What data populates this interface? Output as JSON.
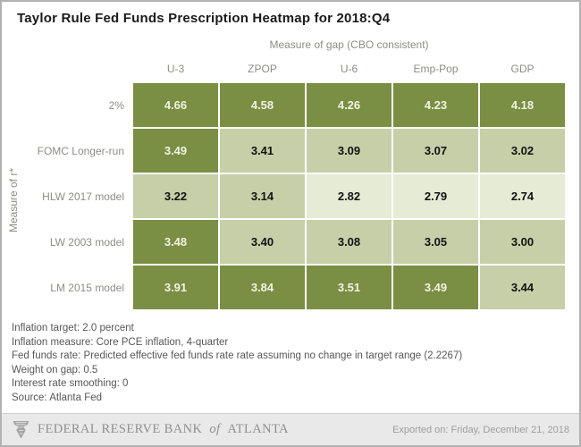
{
  "title": "Taylor Rule Fed Funds Prescription Heatmap for 2018:Q4",
  "chart_data": {
    "type": "heatmap",
    "x_axis_title": "Measure of gap (CBO consistent)",
    "y_axis_title": "Measure of r*",
    "columns": [
      "U-3",
      "ZPOP",
      "U-6",
      "Emp-Pop",
      "GDP"
    ],
    "rows": [
      "2%",
      "FOMC Longer-run",
      "HLW 2017 model",
      "LW 2003 model",
      "LM 2015 model"
    ],
    "values": [
      [
        4.66,
        4.58,
        4.26,
        4.23,
        4.18
      ],
      [
        3.49,
        3.41,
        3.09,
        3.07,
        3.02
      ],
      [
        3.22,
        3.14,
        2.82,
        2.79,
        2.74
      ],
      [
        3.48,
        3.4,
        3.08,
        3.05,
        3.0
      ],
      [
        3.91,
        3.84,
        3.51,
        3.49,
        3.44
      ]
    ],
    "cell_levels": [
      [
        "high",
        "high",
        "high",
        "high",
        "high"
      ],
      [
        "high",
        "mid",
        "mid",
        "mid",
        "mid"
      ],
      [
        "mid",
        "mid",
        "low",
        "low",
        "low"
      ],
      [
        "high",
        "mid",
        "mid",
        "mid",
        "mid"
      ],
      [
        "high",
        "high",
        "high",
        "high",
        "mid"
      ]
    ],
    "colors": {
      "high": "#7A8E44",
      "mid": "#C6CFA7",
      "low": "#E6EBD6",
      "text_on_high": "#F2F3E2",
      "text_on_light": "#121212"
    },
    "value_decimals": 2
  },
  "notes": {
    "lines": [
      "Inflation target: 2.0 percent",
      "Inflation measure: Core PCE inflation, 4-quarter",
      "Fed funds rate: Predicted effective fed funds rate rate assuming no change in target range (2.2267)",
      "Weight on gap: 0.5",
      "Interest rate smoothing: 0",
      "Source: Atlanta Fed"
    ]
  },
  "footer": {
    "brand_left": "FEDERAL RESERVE BANK",
    "brand_of": "of",
    "brand_right": "ATLANTA",
    "exported": "Exported on:  Friday, December 21, 2018"
  }
}
